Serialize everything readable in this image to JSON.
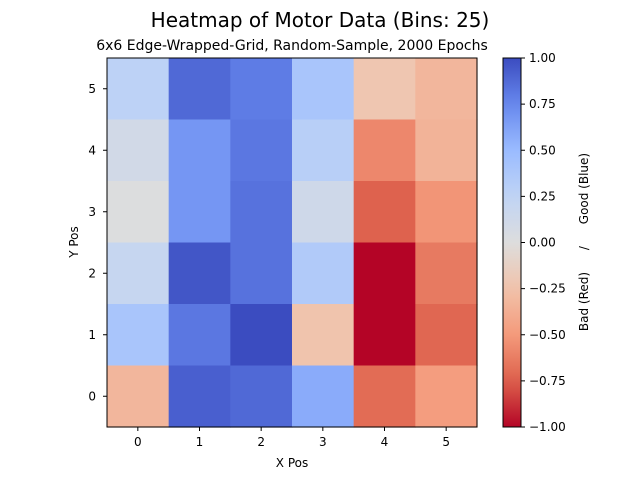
{
  "chart_data": {
    "type": "heatmap",
    "title": "Heatmap of Motor Data (Bins: 25)",
    "subtitle": "6x6 Edge-Wrapped-Grid, Random-Sample, 2000 Epochs",
    "xlabel": "X Pos",
    "ylabel": "Y Pos",
    "x_categories": [
      "0",
      "1",
      "2",
      "3",
      "4",
      "5"
    ],
    "y_categories": [
      "0",
      "1",
      "2",
      "3",
      "4",
      "5"
    ],
    "values_by_row": [
      {
        "y": "5",
        "values": [
          0.27,
          0.88,
          0.8,
          0.4,
          -0.22,
          -0.33
        ]
      },
      {
        "y": "4",
        "values": [
          0.1,
          0.68,
          0.82,
          0.3,
          -0.58,
          -0.35
        ]
      },
      {
        "y": "3",
        "values": [
          0.01,
          0.68,
          0.84,
          0.13,
          -0.74,
          -0.52
        ]
      },
      {
        "y": "2",
        "values": [
          0.2,
          0.96,
          0.84,
          0.35,
          -1.0,
          -0.64
        ]
      },
      {
        "y": "1",
        "values": [
          0.4,
          0.82,
          1.0,
          -0.24,
          -1.0,
          -0.72
        ]
      },
      {
        "y": "0",
        "values": [
          -0.33,
          0.92,
          0.88,
          0.58,
          -0.7,
          -0.48
        ]
      }
    ],
    "colorbar": {
      "label_parts": [
        "Bad (Red)",
        "/",
        "Good (Blue)"
      ],
      "range": [
        -1.0,
        1.0
      ],
      "ticks": [
        "1.00",
        "0.75",
        "0.50",
        "0.25",
        "0.00",
        "−0.25",
        "−0.50",
        "−0.75",
        "−1.00"
      ],
      "colormap": "coolwarm reversed (red = -1, blue = +1)"
    }
  }
}
